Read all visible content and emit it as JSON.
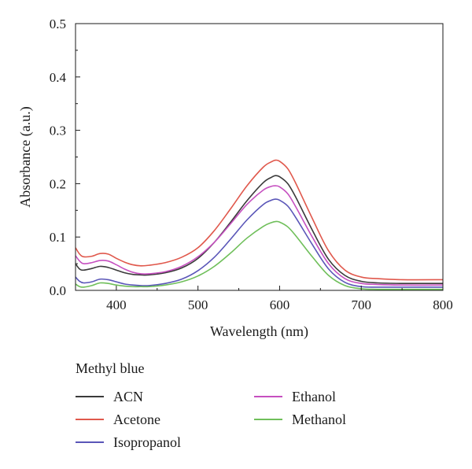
{
  "chart_data": {
    "type": "line",
    "title": "",
    "xlabel": "Wavelength (nm)",
    "ylabel": "Absorbance (a.u.)",
    "xlim": [
      350,
      800
    ],
    "ylim": [
      0.0,
      0.5
    ],
    "x_ticks": [
      "400",
      "500",
      "600",
      "700",
      "800"
    ],
    "x_tick_values": [
      400,
      500,
      600,
      700,
      800
    ],
    "y_ticks": [
      "0.0",
      "0.1",
      "0.2",
      "0.3",
      "0.4",
      "0.5"
    ],
    "y_tick_values": [
      0.0,
      0.1,
      0.2,
      0.3,
      0.4,
      0.5
    ],
    "grid": false,
    "legend_title": "Methyl blue",
    "legend_position": "below",
    "x": [
      350,
      355,
      360,
      370,
      380,
      390,
      400,
      410,
      420,
      430,
      440,
      460,
      480,
      500,
      520,
      540,
      560,
      580,
      590,
      595,
      600,
      610,
      620,
      640,
      660,
      680,
      700,
      720,
      750,
      800
    ],
    "series": [
      {
        "name": "ACN",
        "color": "#3a3a3a",
        "values": [
          0.05,
          0.04,
          0.038,
          0.041,
          0.045,
          0.043,
          0.038,
          0.033,
          0.03,
          0.029,
          0.029,
          0.033,
          0.042,
          0.06,
          0.09,
          0.128,
          0.168,
          0.202,
          0.212,
          0.215,
          0.213,
          0.2,
          0.174,
          0.113,
          0.058,
          0.028,
          0.017,
          0.014,
          0.013,
          0.013
        ]
      },
      {
        "name": "Acetone",
        "color": "#e0584c",
        "values": [
          0.08,
          0.068,
          0.063,
          0.064,
          0.069,
          0.068,
          0.06,
          0.053,
          0.048,
          0.046,
          0.047,
          0.052,
          0.062,
          0.08,
          0.112,
          0.153,
          0.196,
          0.231,
          0.241,
          0.244,
          0.242,
          0.228,
          0.2,
          0.135,
          0.074,
          0.038,
          0.025,
          0.022,
          0.02,
          0.02
        ]
      },
      {
        "name": "Isopropanol",
        "color": "#5a56b8",
        "values": [
          0.025,
          0.017,
          0.014,
          0.016,
          0.021,
          0.02,
          0.016,
          0.012,
          0.01,
          0.009,
          0.009,
          0.013,
          0.021,
          0.037,
          0.062,
          0.096,
          0.132,
          0.161,
          0.169,
          0.171,
          0.169,
          0.158,
          0.136,
          0.086,
          0.04,
          0.015,
          0.007,
          0.006,
          0.006,
          0.006
        ]
      },
      {
        "name": "Ethanol",
        "color": "#c650c0",
        "values": [
          0.065,
          0.055,
          0.05,
          0.052,
          0.056,
          0.055,
          0.048,
          0.04,
          0.034,
          0.031,
          0.031,
          0.035,
          0.045,
          0.063,
          0.09,
          0.125,
          0.161,
          0.188,
          0.195,
          0.196,
          0.194,
          0.181,
          0.156,
          0.1,
          0.05,
          0.022,
          0.013,
          0.011,
          0.01,
          0.01
        ]
      },
      {
        "name": "Methanol",
        "color": "#6fbf5a",
        "values": [
          0.012,
          0.007,
          0.006,
          0.009,
          0.014,
          0.013,
          0.01,
          0.008,
          0.007,
          0.007,
          0.007,
          0.01,
          0.016,
          0.027,
          0.045,
          0.07,
          0.098,
          0.12,
          0.127,
          0.129,
          0.128,
          0.119,
          0.102,
          0.063,
          0.028,
          0.009,
          0.003,
          0.002,
          0.002,
          0.002
        ]
      }
    ]
  }
}
